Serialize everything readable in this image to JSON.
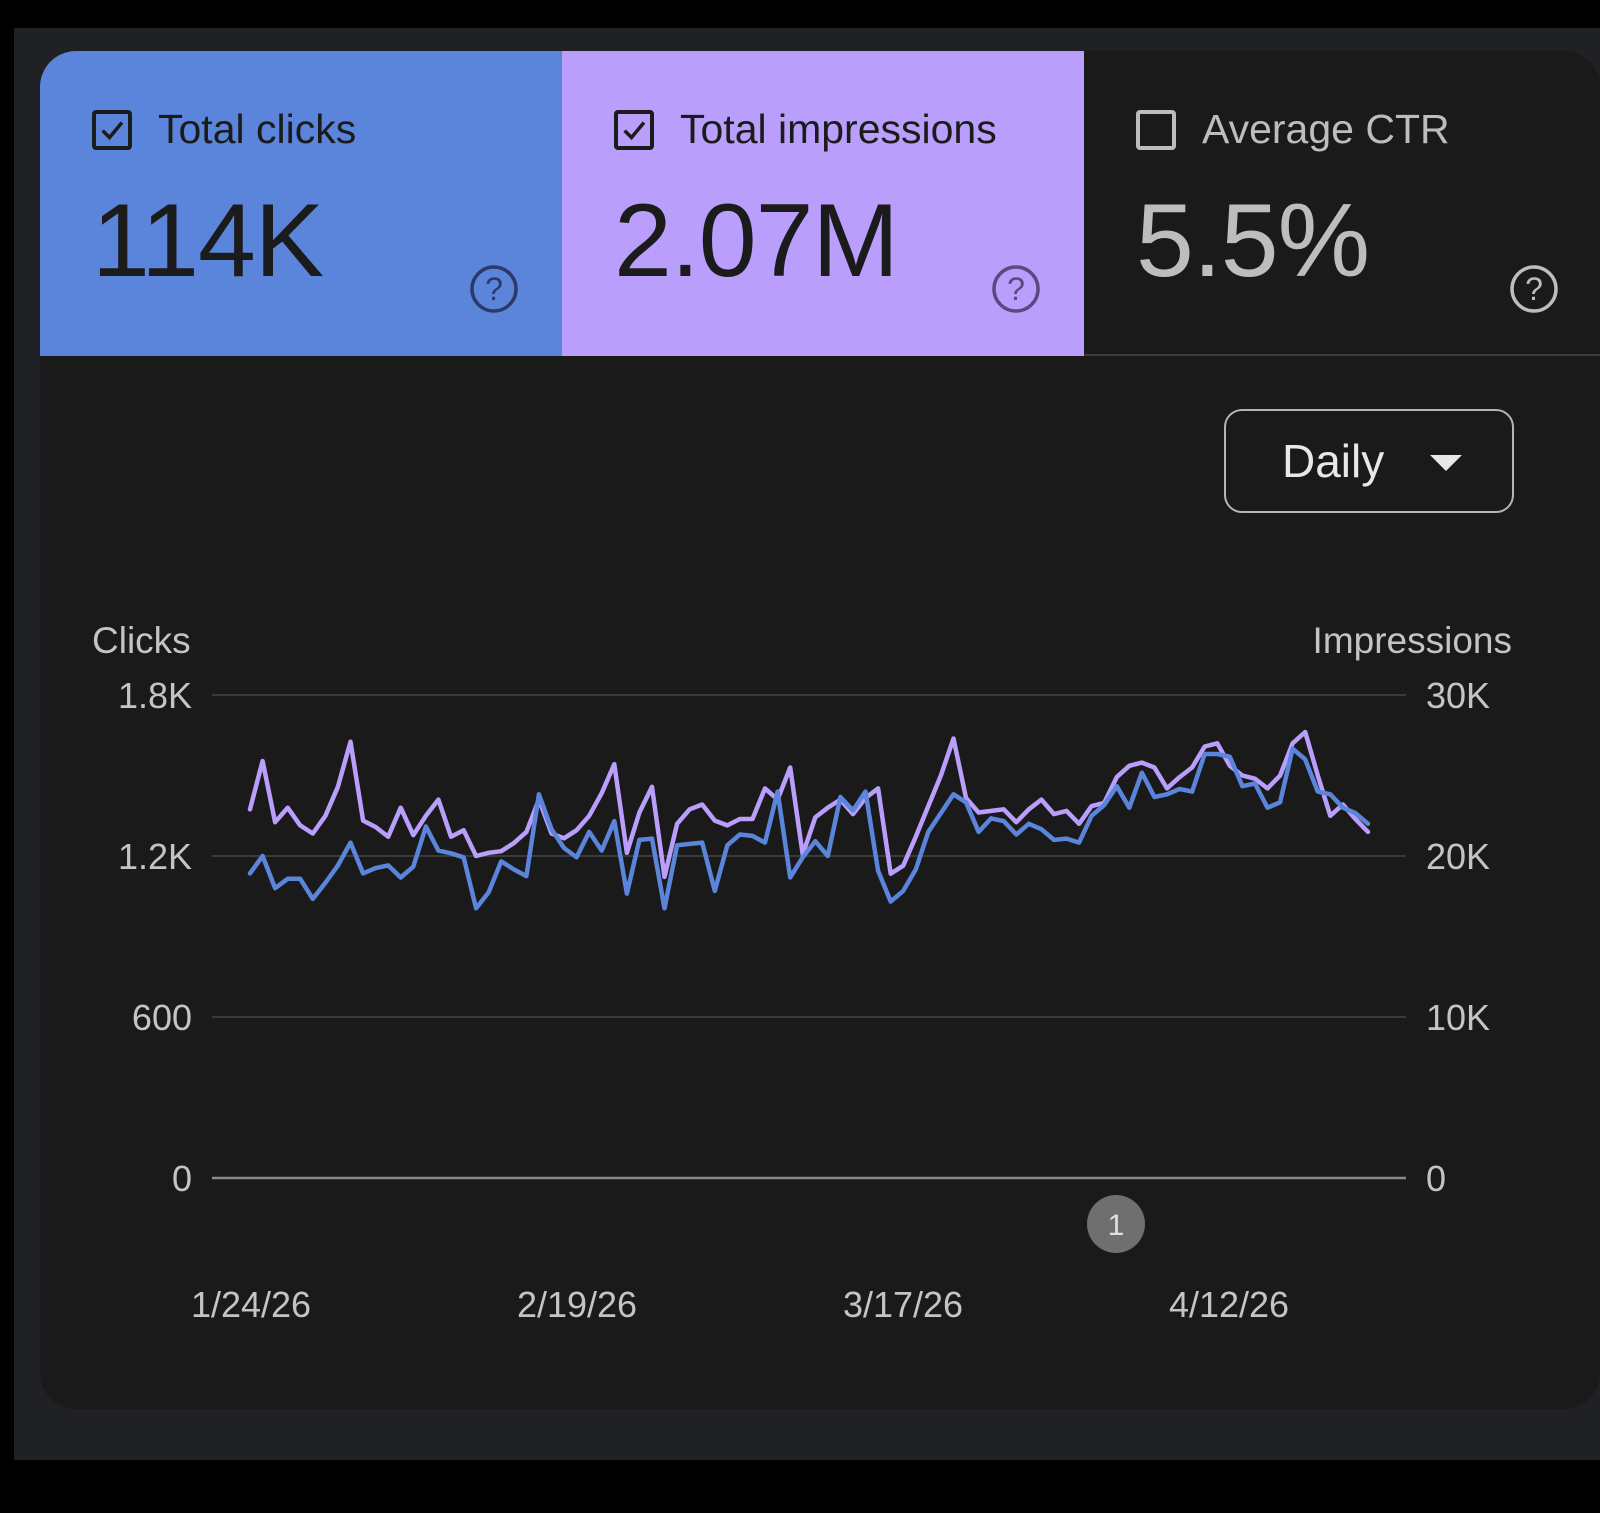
{
  "metrics": [
    {
      "label": "Total clicks",
      "value": "114K",
      "checked": true,
      "color": "#5b84db"
    },
    {
      "label": "Total impressions",
      "value": "2.07M",
      "checked": true,
      "color": "#b99efc"
    },
    {
      "label": "Average CTR",
      "value": "5.5%",
      "checked": false,
      "color": "#1a1a1a"
    }
  ],
  "icons": {
    "checkbox_checked": "checkbox-checked-icon",
    "checkbox_empty": "checkbox-empty-icon",
    "help": "help-circle-icon",
    "caret": "caret-down-icon"
  },
  "granularity": {
    "selected": "Daily"
  },
  "chart_data": {
    "type": "line",
    "y_left_title": "Clicks",
    "y_right_title": "Impressions",
    "y_left_ticks": [
      "1.8K",
      "1.2K",
      "600",
      "0"
    ],
    "y_right_ticks": [
      "30K",
      "20K",
      "10K",
      "0"
    ],
    "y_left_range": [
      0,
      1800
    ],
    "y_right_range": [
      0,
      30000
    ],
    "x_ticks": [
      "1/24/26",
      "2/19/26",
      "3/17/26",
      "4/12/26"
    ],
    "grid": true,
    "annotation": "1",
    "series": [
      {
        "name": "Total clicks",
        "axis": "left",
        "color": "#5b84db",
        "values": [
          1135,
          1200,
          1080,
          1115,
          1115,
          1040,
          1100,
          1165,
          1250,
          1135,
          1155,
          1165,
          1120,
          1160,
          1310,
          1220,
          1210,
          1195,
          1005,
          1065,
          1180,
          1150,
          1125,
          1430,
          1300,
          1230,
          1195,
          1290,
          1220,
          1330,
          1060,
          1260,
          1265,
          1005,
          1240,
          1245,
          1250,
          1070,
          1240,
          1280,
          1275,
          1250,
          1440,
          1120,
          1195,
          1255,
          1200,
          1420,
          1370,
          1440,
          1145,
          1030,
          1070,
          1150,
          1290,
          1360,
          1430,
          1400,
          1290,
          1340,
          1330,
          1280,
          1320,
          1300,
          1260,
          1265,
          1250,
          1350,
          1390,
          1460,
          1380,
          1510,
          1420,
          1430,
          1450,
          1440,
          1580,
          1580,
          1570,
          1460,
          1470,
          1380,
          1400,
          1600,
          1560,
          1440,
          1430,
          1380,
          1360,
          1320
        ]
      },
      {
        "name": "Total impressions",
        "axis": "right",
        "color": "#b99efc",
        "values": [
          22900,
          25900,
          22100,
          23000,
          21900,
          21400,
          22500,
          24300,
          27100,
          22200,
          21800,
          21200,
          23000,
          21300,
          22500,
          23500,
          21200,
          21600,
          20000,
          20200,
          20300,
          20800,
          21500,
          23500,
          21400,
          21100,
          21600,
          22500,
          23900,
          25700,
          20200,
          22700,
          24300,
          18700,
          22000,
          22900,
          23200,
          22200,
          21900,
          22300,
          22300,
          24200,
          23500,
          25500,
          20100,
          22400,
          23000,
          23500,
          22600,
          23600,
          24200,
          18900,
          19400,
          21200,
          23100,
          25000,
          27300,
          23600,
          22700,
          22800,
          22900,
          22100,
          22900,
          23500,
          22600,
          22800,
          22000,
          23100,
          23300,
          24900,
          25600,
          25800,
          25500,
          24200,
          24900,
          25500,
          26800,
          27000,
          25600,
          25000,
          24800,
          24200,
          25000,
          27000,
          27700,
          25000,
          22500,
          23200,
          22300,
          21500
        ]
      }
    ]
  }
}
